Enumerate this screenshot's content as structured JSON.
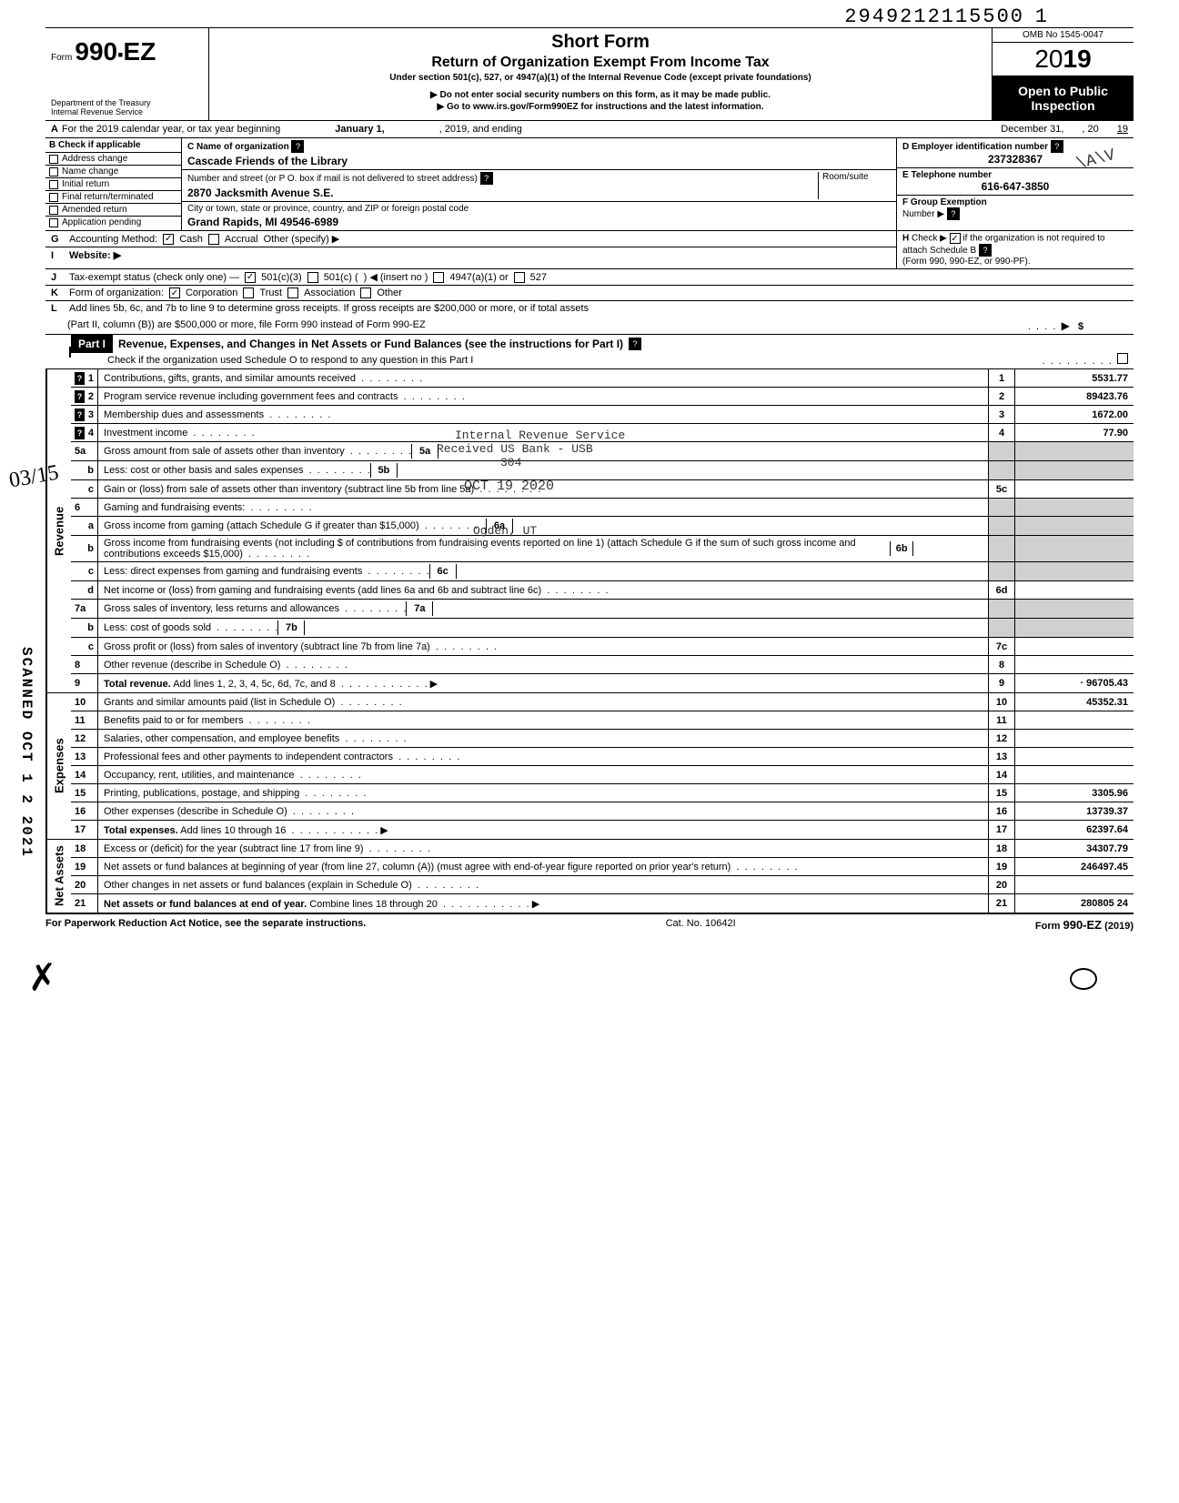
{
  "top_number": "2949212115500",
  "top_suffix": "1",
  "form": {
    "prefix": "Form",
    "number": "990-EZ",
    "dept1": "Department of the Treasury",
    "dept2": "Internal Revenue Service"
  },
  "header": {
    "title": "Short Form",
    "subtitle": "Return of Organization Exempt From Income Tax",
    "subline": "Under section 501(c), 527, or 4947(a)(1) of the Internal Revenue Code (except private foundations)",
    "note1": "▶ Do not enter social security numbers on this form, as it may be made public.",
    "note2": "▶ Go to www.irs.gov/Form990EZ for instructions and the latest information.",
    "omb": "OMB No 1545-0047",
    "year_prefix": "20",
    "year_bold": "19",
    "open": "Open to Public Inspection"
  },
  "line_a": {
    "label": "A",
    "text1": "For the 2019 calendar year, or tax year beginning",
    "val1": "January 1,",
    "text2": ", 2019, and ending",
    "val2": "December 31,",
    "text3": ", 20",
    "val3": "19"
  },
  "section_b": {
    "header": "B Check if applicable",
    "items": [
      "Address change",
      "Name change",
      "Initial return",
      "Final return/terminated",
      "Amended return",
      "Application pending"
    ]
  },
  "section_c": {
    "name_label": "C Name of organization",
    "name": "Cascade Friends of the Library",
    "street_label": "Number and street (or P O. box if mail is not delivered to street address)",
    "room_label": "Room/suite",
    "street": "2870 Jacksmith Avenue S.E.",
    "city_label": "City or town, state or province, country, and ZIP or foreign postal code",
    "city": "Grand Rapids, MI 49546-6989"
  },
  "section_d": {
    "ein_label": "D Employer identification number",
    "ein": "237328367",
    "tel_label": "E Telephone number",
    "tel": "616-647-3850",
    "group_label": "F Group Exemption",
    "group_sub": "Number ▶"
  },
  "line_g": {
    "label": "G",
    "text": "Accounting Method:",
    "opts": [
      "Cash",
      "Accrual",
      "Other (specify) ▶"
    ],
    "checked": 0
  },
  "line_i": {
    "label": "I",
    "text": "Website: ▶"
  },
  "line_h": {
    "label": "H",
    "text1": "Check ▶",
    "text2": "if the organization is not required to attach Schedule B",
    "text3": "(Form 990, 990-EZ, or 990-PF)."
  },
  "line_j": {
    "label": "J",
    "text": "Tax-exempt status (check only one) —",
    "opts": [
      "501(c)(3)",
      "501(c) (",
      ") ◀ (insert no )",
      "4947(a)(1) or",
      "527"
    ],
    "checked": 0
  },
  "line_k": {
    "label": "K",
    "text": "Form of organization:",
    "opts": [
      "Corporation",
      "Trust",
      "Association",
      "Other"
    ],
    "checked": 0
  },
  "line_l": {
    "label": "L",
    "text1": "Add lines 5b, 6c, and 7b to line 9 to determine gross receipts. If gross receipts are $200,000 or more, or if total assets",
    "text2": "(Part II, column (B)) are $500,000 or more, file Form 990 instead of Form 990-EZ",
    "arrow": "▶",
    "dollar": "$"
  },
  "part1": {
    "label": "Part I",
    "title": "Revenue, Expenses, and Changes in Net Assets or Fund Balances (see the instructions for Part I)",
    "sub": "Check if the organization used Schedule O to respond to any question in this Part I"
  },
  "sections": {
    "revenue": "Revenue",
    "expenses": "Expenses",
    "netassets": "Net Assets"
  },
  "rows": [
    {
      "n": "1",
      "desc": "Contributions, gifts, grants, and similar amounts received",
      "rn": "1",
      "val": "5531.77"
    },
    {
      "n": "2",
      "desc": "Program service revenue including government fees and contracts",
      "rn": "2",
      "val": "89423.76"
    },
    {
      "n": "3",
      "desc": "Membership dues and assessments",
      "rn": "3",
      "val": "1672.00"
    },
    {
      "n": "4",
      "desc": "Investment income",
      "rn": "4",
      "val": "77.90"
    },
    {
      "n": "5a",
      "desc": "Gross amount from sale of assets other than inventory",
      "in": "5a",
      "inval": ""
    },
    {
      "n": "b",
      "desc": "Less: cost or other basis and sales expenses",
      "in": "5b",
      "inval": ""
    },
    {
      "n": "c",
      "desc": "Gain or (loss) from sale of assets other than inventory (subtract line 5b from line 5a)",
      "rn": "5c",
      "val": ""
    },
    {
      "n": "6",
      "desc": "Gaming and fundraising events:"
    },
    {
      "n": "a",
      "desc": "Gross income from gaming (attach Schedule G if greater than $15,000)",
      "in": "6a",
      "inval": ""
    },
    {
      "n": "b",
      "desc": "Gross income from fundraising events (not including  $                       of contributions from fundraising events reported on line 1) (attach Schedule G if the sum of such gross income and contributions exceeds $15,000)",
      "in": "6b",
      "inval": ""
    },
    {
      "n": "c",
      "desc": "Less: direct expenses from gaming and fundraising events",
      "in": "6c",
      "inval": ""
    },
    {
      "n": "d",
      "desc": "Net income or (loss) from gaming and fundraising events (add lines 6a and 6b and subtract line 6c)",
      "rn": "6d",
      "val": ""
    },
    {
      "n": "7a",
      "desc": "Gross sales of inventory, less returns and allowances",
      "in": "7a",
      "inval": ""
    },
    {
      "n": "b",
      "desc": "Less: cost of goods sold",
      "in": "7b",
      "inval": ""
    },
    {
      "n": "c",
      "desc": "Gross profit or (loss) from sales of inventory (subtract line 7b from line 7a)",
      "rn": "7c",
      "val": ""
    },
    {
      "n": "8",
      "desc": "Other revenue (describe in Schedule O)",
      "rn": "8",
      "val": ""
    },
    {
      "n": "9",
      "desc": "Total revenue. Add lines 1, 2, 3, 4, 5c, 6d, 7c, and 8",
      "rn": "9",
      "val": "· 96705.43",
      "bold": true,
      "arrow": true
    }
  ],
  "exp_rows": [
    {
      "n": "10",
      "desc": "Grants and similar amounts paid (list in Schedule O)",
      "rn": "10",
      "val": "45352.31"
    },
    {
      "n": "11",
      "desc": "Benefits paid to or for members",
      "rn": "11",
      "val": ""
    },
    {
      "n": "12",
      "desc": "Salaries, other compensation, and employee benefits",
      "rn": "12",
      "val": ""
    },
    {
      "n": "13",
      "desc": "Professional fees and other payments to independent contractors",
      "rn": "13",
      "val": ""
    },
    {
      "n": "14",
      "desc": "Occupancy, rent, utilities, and maintenance",
      "rn": "14",
      "val": ""
    },
    {
      "n": "15",
      "desc": "Printing, publications, postage, and shipping",
      "rn": "15",
      "val": "3305.96"
    },
    {
      "n": "16",
      "desc": "Other expenses (describe in Schedule O)",
      "rn": "16",
      "val": "13739.37"
    },
    {
      "n": "17",
      "desc": "Total expenses. Add lines 10 through 16",
      "rn": "17",
      "val": "62397.64",
      "bold": true,
      "arrow": true
    }
  ],
  "net_rows": [
    {
      "n": "18",
      "desc": "Excess or (deficit) for the year (subtract line 17 from line 9)",
      "rn": "18",
      "val": "34307.79"
    },
    {
      "n": "19",
      "desc": "Net assets or fund balances at beginning of year (from line 27, column (A)) (must agree with end-of-year figure reported on prior year's return)",
      "rn": "19",
      "val": "246497.45"
    },
    {
      "n": "20",
      "desc": "Other changes in net assets or fund balances (explain in Schedule O)",
      "rn": "20",
      "val": ""
    },
    {
      "n": "21",
      "desc": "Net assets or fund balances at end of year. Combine lines 18 through 20",
      "rn": "21",
      "val": "280805 24",
      "bold": true,
      "arrow": true
    }
  ],
  "footer": {
    "left": "For Paperwork Reduction Act Notice, see the separate instructions.",
    "mid": "Cat. No. 10642I",
    "right": "Form 990-EZ (2019)"
  },
  "stamps": {
    "irs1": "Internal Revenue Service",
    "irs2": "Received US Bank - USB",
    "irs3": "304",
    "date": "OCT 19 2020",
    "ogden": "Ogden, UT",
    "scanned": "SCANNED OCT 1 2 2021",
    "handwrite": "03/15",
    "hand2": "\\A\\V"
  }
}
